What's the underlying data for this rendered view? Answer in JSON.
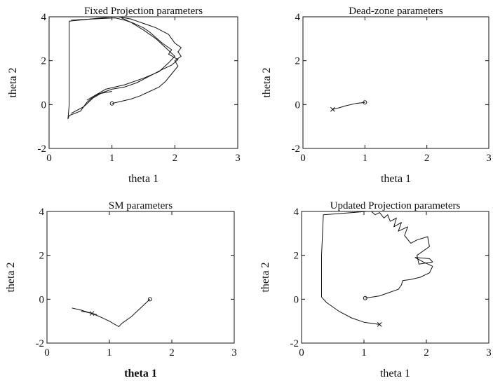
{
  "chart_data": [
    {
      "type": "line",
      "title": "Fixed Projection parameters",
      "xlabel": "theta 1",
      "ylabel": "theta 2",
      "xlim": [
        0,
        3
      ],
      "ylim": [
        -2,
        4
      ],
      "xticks": [
        "0",
        "1",
        "2",
        "3"
      ],
      "yticks": [
        "-2",
        "0",
        "2",
        "4"
      ],
      "start_marker": {
        "x": 1.0,
        "y": 0.05,
        "symbol": "o"
      },
      "series": [
        {
          "x": [
            1.0,
            1.15,
            1.3,
            1.45,
            1.6,
            1.75,
            1.85,
            1.95,
            2.05,
            2.0,
            2.1,
            2.05,
            2.1,
            2.0,
            1.95,
            1.9,
            1.8,
            1.7,
            1.6,
            1.5,
            1.4,
            1.3,
            1.2,
            1.1,
            1.0,
            0.32,
            0.32,
            0.32,
            0.3,
            0.32,
            0.5,
            0.6,
            0.7,
            0.8,
            1.0
          ],
          "y": [
            0.05,
            0.15,
            0.25,
            0.4,
            0.6,
            0.8,
            1.05,
            1.4,
            1.75,
            2.0,
            2.2,
            2.4,
            2.6,
            2.8,
            3.0,
            3.2,
            3.35,
            3.5,
            3.6,
            3.7,
            3.8,
            3.9,
            3.95,
            4.0,
            4.0,
            3.8,
            2.0,
            0.0,
            -0.65,
            -0.5,
            -0.3,
            0.1,
            0.35,
            0.5,
            0.6
          ]
        },
        {
          "x": [
            0.35,
            0.55,
            0.7,
            0.85,
            1.0,
            1.2,
            1.4,
            1.6,
            1.8,
            1.95,
            2.05,
            1.9,
            1.95,
            1.8,
            1.7,
            1.6,
            1.5,
            1.35,
            1.2,
            1.05,
            0.35
          ],
          "y": [
            -0.4,
            -0.1,
            0.3,
            0.55,
            0.7,
            0.8,
            1.0,
            1.3,
            1.6,
            1.8,
            2.05,
            2.3,
            2.5,
            2.8,
            3.05,
            3.3,
            3.5,
            3.7,
            3.85,
            3.95,
            3.85
          ]
        },
        {
          "x": [
            0.6,
            0.9,
            1.2,
            1.5,
            1.75,
            1.9,
            2.0,
            1.85,
            1.7,
            1.5,
            1.3,
            1.15
          ],
          "y": [
            0.2,
            0.7,
            0.9,
            1.2,
            1.5,
            1.9,
            2.2,
            2.6,
            3.0,
            3.4,
            3.75,
            3.95
          ]
        }
      ]
    },
    {
      "type": "line",
      "title": "Dead-zone parameters",
      "xlabel": "theta 1",
      "ylabel": "theta 2",
      "xlim": [
        0,
        3
      ],
      "ylim": [
        -2,
        4
      ],
      "xticks": [
        "0",
        "1",
        "2",
        "3"
      ],
      "yticks": [
        "-2",
        "0",
        "2",
        "4"
      ],
      "start_marker": {
        "x": 1.0,
        "y": 0.1,
        "symbol": "o"
      },
      "end_marker": {
        "x": 0.48,
        "y": -0.22,
        "symbol": "x"
      },
      "series": [
        {
          "x": [
            1.0,
            0.85,
            0.7,
            0.58,
            0.48
          ],
          "y": [
            0.1,
            0.05,
            -0.05,
            -0.15,
            -0.22
          ]
        }
      ]
    },
    {
      "type": "line",
      "title": "SM parameters",
      "xlabel": "theta 1",
      "ylabel": "theta 2",
      "xlim": [
        0,
        3
      ],
      "ylim": [
        -2,
        4
      ],
      "xticks": [
        "0",
        "1",
        "2",
        "3"
      ],
      "yticks": [
        "-2",
        "0",
        "2",
        "4"
      ],
      "start_marker": {
        "x": 1.65,
        "y": 0.0,
        "symbol": "o"
      },
      "end_marker": {
        "x": 0.72,
        "y": -0.65,
        "symbol": "x"
      },
      "series": [
        {
          "x": [
            1.65,
            1.5,
            1.35,
            1.2,
            1.15,
            1.0,
            0.85,
            0.72,
            0.55,
            0.4
          ],
          "y": [
            0.0,
            -0.4,
            -0.8,
            -1.1,
            -1.25,
            -1.0,
            -0.8,
            -0.65,
            -0.5,
            -0.4
          ]
        },
        {
          "x": [
            0.55,
            0.62,
            0.68,
            0.74,
            0.8
          ],
          "y": [
            -0.55,
            -0.58,
            -0.62,
            -0.66,
            -0.7
          ]
        }
      ]
    },
    {
      "type": "line",
      "title": "Updated Projection parameters",
      "xlabel": "theta 1",
      "ylabel": "theta 2",
      "xlim": [
        0,
        3
      ],
      "ylim": [
        -2,
        4
      ],
      "xticks": [
        "0",
        "1",
        "2",
        "3"
      ],
      "yticks": [
        "-2",
        "0",
        "2",
        "4"
      ],
      "start_marker": {
        "x": 1.02,
        "y": 0.05,
        "symbol": "o"
      },
      "end_marker": {
        "x": 1.25,
        "y": -1.15,
        "symbol": "x"
      },
      "series": [
        {
          "x": [
            1.02,
            1.25,
            1.4,
            1.55,
            1.6,
            1.62,
            1.75,
            1.9,
            2.05,
            2.1,
            1.95,
            1.82,
            2.05,
            2.1,
            1.88,
            1.85,
            2.05,
            2.02,
            1.85,
            1.75,
            1.65,
            1.7,
            1.55,
            1.6,
            1.48,
            1.52,
            1.42,
            1.38,
            1.32,
            1.25,
            1.18,
            1.12,
            1.05,
            0.35,
            0.32,
            0.32,
            0.32,
            0.4,
            0.6,
            0.8,
            1.0,
            1.25
          ],
          "y": [
            0.05,
            0.15,
            0.3,
            0.45,
            0.65,
            0.85,
            0.9,
            1.0,
            1.2,
            1.5,
            1.7,
            1.9,
            1.85,
            1.7,
            1.6,
            2.0,
            2.4,
            2.85,
            2.7,
            2.55,
            2.9,
            3.3,
            3.1,
            3.5,
            3.3,
            3.7,
            3.55,
            3.85,
            3.7,
            3.95,
            3.85,
            4.0,
            4.0,
            3.85,
            2.0,
            0.5,
            0.1,
            -0.15,
            -0.55,
            -0.85,
            -1.05,
            -1.15
          ]
        }
      ]
    }
  ]
}
